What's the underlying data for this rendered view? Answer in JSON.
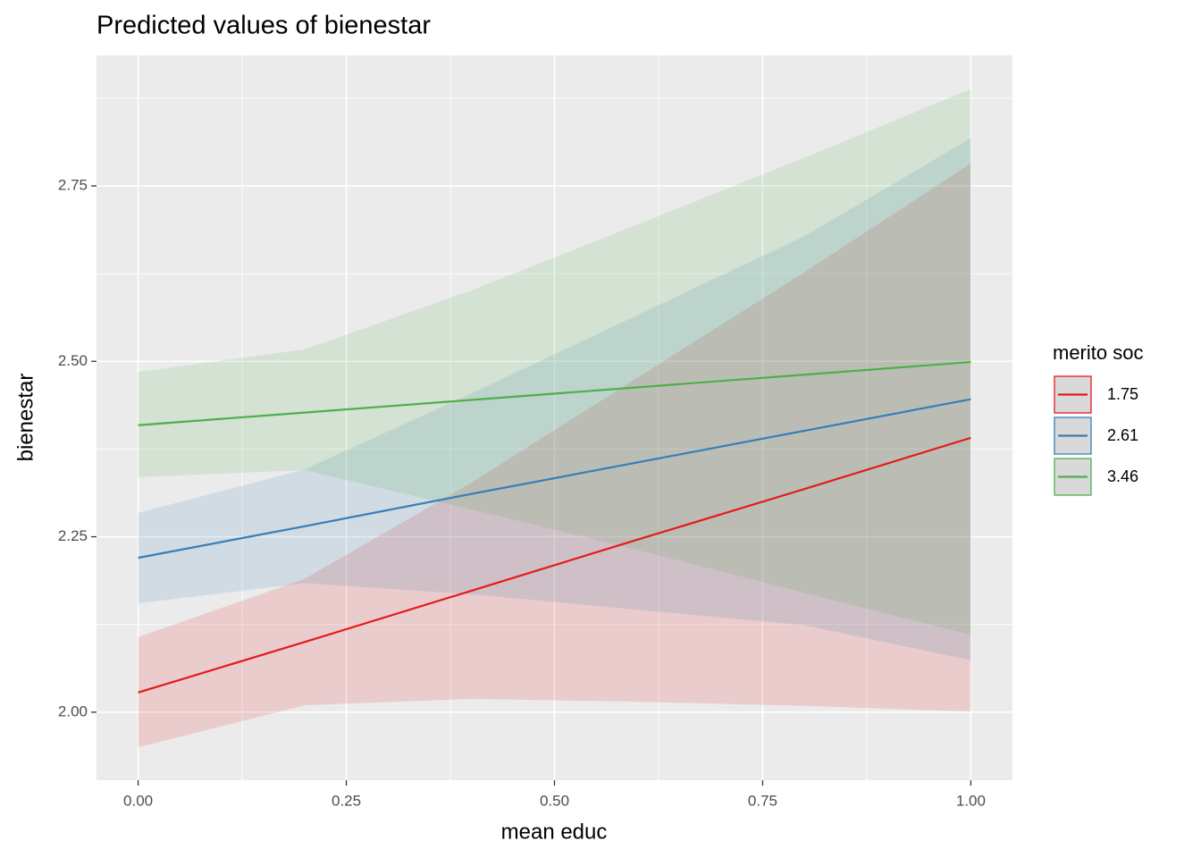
{
  "chart_data": {
    "type": "line",
    "title": "Predicted values of bienestar",
    "x_label": "mean educ",
    "y_label": "bienestar",
    "legend_title": "merito soc",
    "legend_position": "right",
    "x": [
      0,
      0.2,
      0.4,
      0.6,
      0.8,
      1.0
    ],
    "xlim": [
      -0.05,
      1.05
    ],
    "ylim": [
      1.903,
      2.936
    ],
    "xticks": [
      {
        "value": 0,
        "label": "0.00"
      },
      {
        "value": 0.25,
        "label": "0.25"
      },
      {
        "value": 0.5,
        "label": "0.50"
      },
      {
        "value": 0.75,
        "label": "0.75"
      },
      {
        "value": 1,
        "label": "1.00"
      }
    ],
    "yticks": [
      {
        "value": 2,
        "label": "2.00"
      },
      {
        "value": 2.25,
        "label": "2.25"
      },
      {
        "value": 2.5,
        "label": "2.50"
      },
      {
        "value": 2.75,
        "label": "2.75"
      }
    ],
    "x_minor": [
      0.125,
      0.375,
      0.625,
      0.875
    ],
    "y_minor": [
      2.125,
      2.375,
      2.625,
      2.875
    ],
    "grid": true,
    "series": [
      {
        "name": "1.75",
        "color": "#e41a1c",
        "values": [
          2.028,
          2.1,
          2.173,
          2.246,
          2.318,
          2.391
        ],
        "lower": [
          1.95,
          2.01,
          2.019,
          2.015,
          2.009,
          2.001
        ],
        "upper": [
          2.107,
          2.19,
          2.327,
          2.477,
          2.627,
          2.782
        ]
      },
      {
        "name": "2.61",
        "color": "#377eb8",
        "values": [
          2.22,
          2.265,
          2.311,
          2.356,
          2.401,
          2.446
        ],
        "lower": [
          2.155,
          2.184,
          2.168,
          2.146,
          2.124,
          2.074
        ],
        "upper": [
          2.284,
          2.346,
          2.454,
          2.566,
          2.678,
          2.818
        ]
      },
      {
        "name": "3.46",
        "color": "#4daf4a",
        "values": [
          2.409,
          2.427,
          2.445,
          2.463,
          2.481,
          2.499
        ],
        "lower": [
          2.335,
          2.345,
          2.289,
          2.231,
          2.17,
          2.11
        ],
        "upper": [
          2.485,
          2.517,
          2.601,
          2.695,
          2.79,
          2.888
        ]
      }
    ]
  }
}
